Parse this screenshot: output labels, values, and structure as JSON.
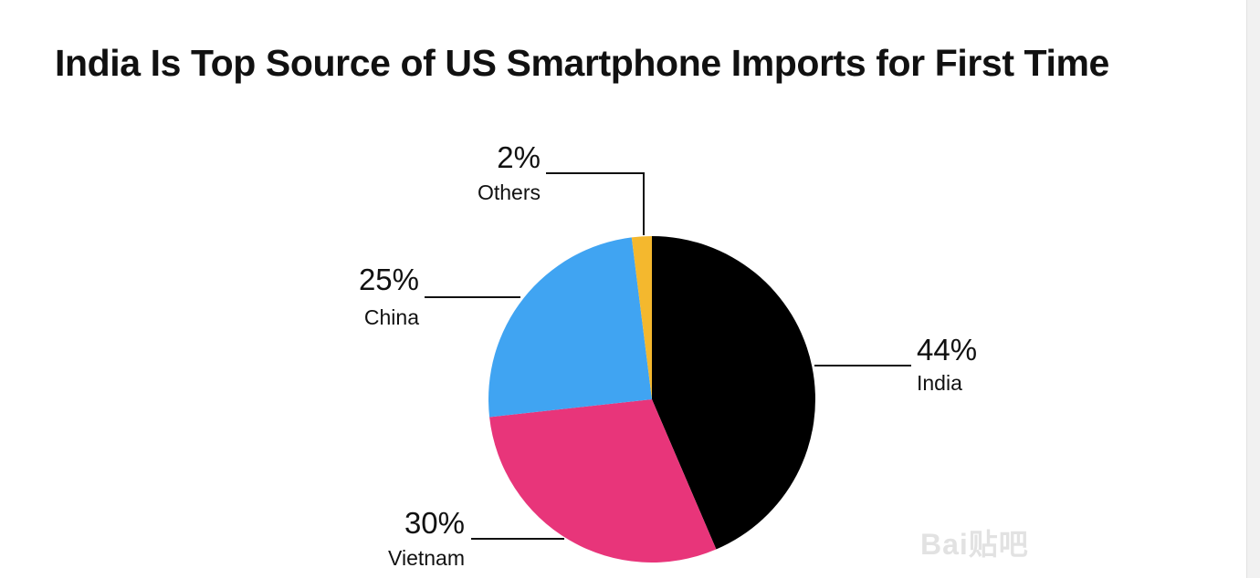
{
  "chart_data": {
    "type": "pie",
    "title": "India Is Top Source of US Smartphone Imports for First Time",
    "slices": [
      {
        "name": "India",
        "value": 44,
        "label": "44%",
        "color": "#000000"
      },
      {
        "name": "Vietnam",
        "value": 30,
        "label": "30%",
        "color": "#e8357a"
      },
      {
        "name": "China",
        "value": 25,
        "label": "25%",
        "color": "#40a4f2"
      },
      {
        "name": "Others",
        "value": 2,
        "label": "2%",
        "color": "#f4b82e"
      }
    ],
    "unit": "%"
  },
  "watermark": {
    "text": "Bai贴吧"
  }
}
